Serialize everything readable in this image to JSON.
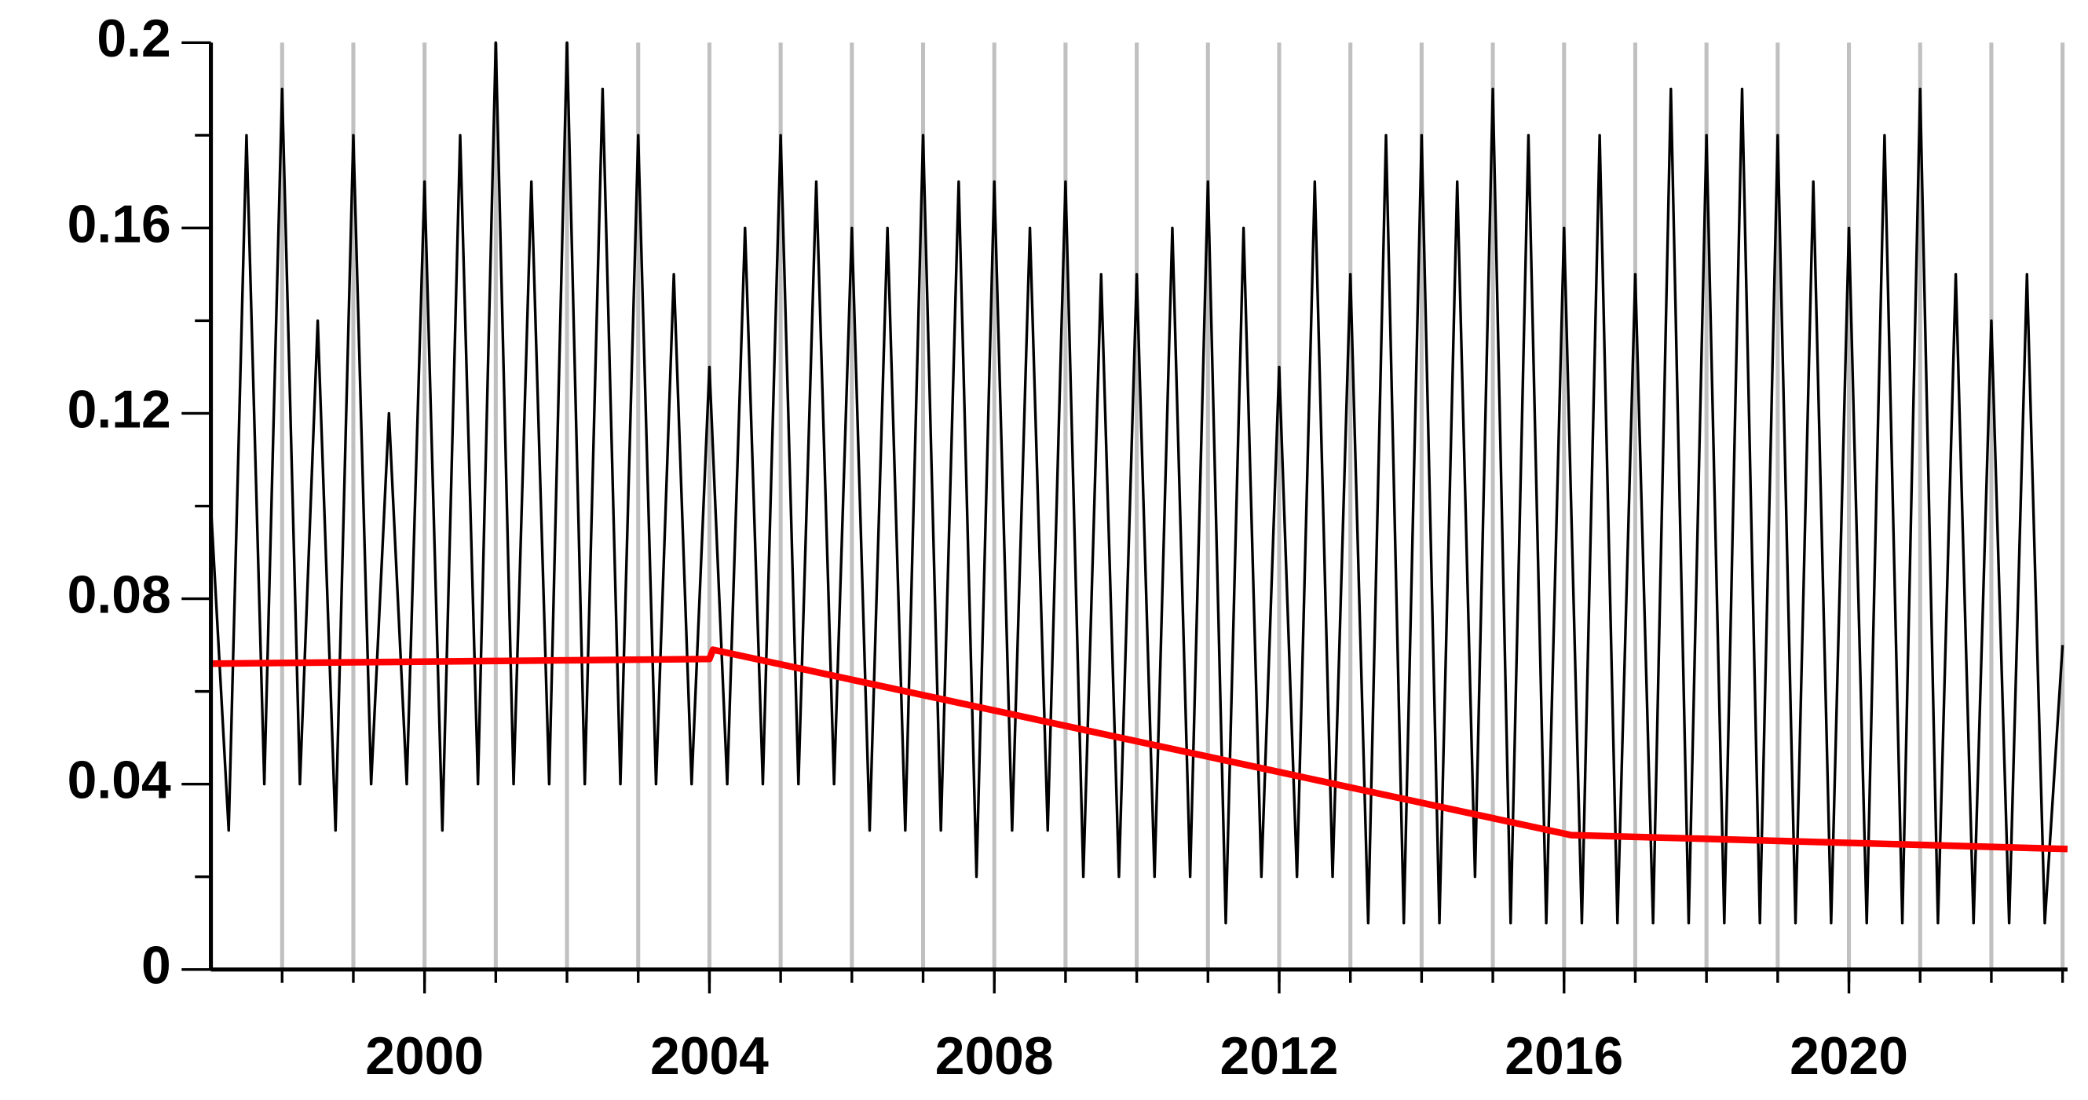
{
  "chart_data": {
    "type": "line",
    "xlim": [
      1997,
      2023.07
    ],
    "ylim": [
      0,
      0.2
    ],
    "yticks": [
      0,
      0.04,
      0.08,
      0.12,
      0.16,
      0.2
    ],
    "yminor": [
      0.02,
      0.06,
      0.1,
      0.14,
      0.18
    ],
    "xticks": [
      2000,
      2004,
      2008,
      2012,
      2016,
      2020
    ],
    "xgrid": [
      1998,
      1999,
      2000,
      2001,
      2002,
      2003,
      2004,
      2005,
      2006,
      2007,
      2008,
      2009,
      2010,
      2011,
      2012,
      2013,
      2014,
      2015,
      2016,
      2017,
      2018,
      2019,
      2020,
      2021,
      2022,
      2023
    ],
    "grid_color": "#c0c0c0",
    "series": [
      {
        "color": "#000000",
        "x": [
          1997,
          1997.25,
          1997.5,
          1997.75,
          1998,
          1998.25,
          1998.5,
          1998.75,
          1999,
          1999.25,
          1999.5,
          1999.75,
          2000,
          2000.25,
          2000.5,
          2000.75,
          2001,
          2001.25,
          2001.5,
          2001.75,
          2002,
          2002.25,
          2002.5,
          2002.75,
          2003,
          2003.25,
          2003.5,
          2003.75,
          2004,
          2004.25,
          2004.5,
          2004.75,
          2005,
          2005.25,
          2005.5,
          2005.75,
          2006,
          2006.25,
          2006.5,
          2006.75,
          2007,
          2007.25,
          2007.5,
          2007.75,
          2008,
          2008.25,
          2008.5,
          2008.75,
          2009,
          2009.25,
          2009.5,
          2009.75,
          2010,
          2010.25,
          2010.5,
          2010.75,
          2011,
          2011.25,
          2011.5,
          2011.75,
          2012,
          2012.25,
          2012.5,
          2012.75,
          2013,
          2013.25,
          2013.5,
          2013.75,
          2014,
          2014.25,
          2014.5,
          2014.75,
          2015,
          2015.25,
          2015.5,
          2015.75,
          2016,
          2016.25,
          2016.5,
          2016.75,
          2017,
          2017.25,
          2017.5,
          2017.75,
          2018,
          2018.25,
          2018.5,
          2018.75,
          2019,
          2019.25,
          2019.5,
          2019.75,
          2020,
          2020.25,
          2020.5,
          2020.75,
          2021,
          2021.25,
          2021.5,
          2021.75,
          2022,
          2022.25,
          2022.5,
          2022.75,
          2023
        ],
        "values": [
          0.1,
          0.03,
          0.18,
          0.04,
          0.19,
          0.04,
          0.14,
          0.03,
          0.18,
          0.04,
          0.12,
          0.04,
          0.17,
          0.03,
          0.18,
          0.04,
          0.2,
          0.04,
          0.17,
          0.04,
          0.2,
          0.04,
          0.19,
          0.04,
          0.18,
          0.04,
          0.15,
          0.04,
          0.13,
          0.04,
          0.16,
          0.04,
          0.18,
          0.04,
          0.17,
          0.04,
          0.16,
          0.03,
          0.16,
          0.03,
          0.18,
          0.03,
          0.17,
          0.02,
          0.17,
          0.03,
          0.16,
          0.03,
          0.17,
          0.02,
          0.15,
          0.02,
          0.15,
          0.02,
          0.16,
          0.02,
          0.17,
          0.01,
          0.16,
          0.02,
          0.13,
          0.02,
          0.17,
          0.02,
          0.15,
          0.01,
          0.18,
          0.01,
          0.18,
          0.01,
          0.17,
          0.02,
          0.19,
          0.01,
          0.18,
          0.01,
          0.16,
          0.01,
          0.18,
          0.01,
          0.15,
          0.01,
          0.19,
          0.01,
          0.18,
          0.01,
          0.19,
          0.01,
          0.18,
          0.01,
          0.17,
          0.01,
          0.16,
          0.01,
          0.18,
          0.01,
          0.19,
          0.01,
          0.15,
          0.01,
          0.14,
          0.01,
          0.15,
          0.01,
          0.07
        ]
      },
      {
        "color": "#ff0000",
        "x": [
          1997,
          2004,
          2004.05,
          2016.1,
          2023.07
        ],
        "values": [
          0.066,
          0.067,
          0.069,
          0.029,
          0.026
        ]
      }
    ]
  }
}
